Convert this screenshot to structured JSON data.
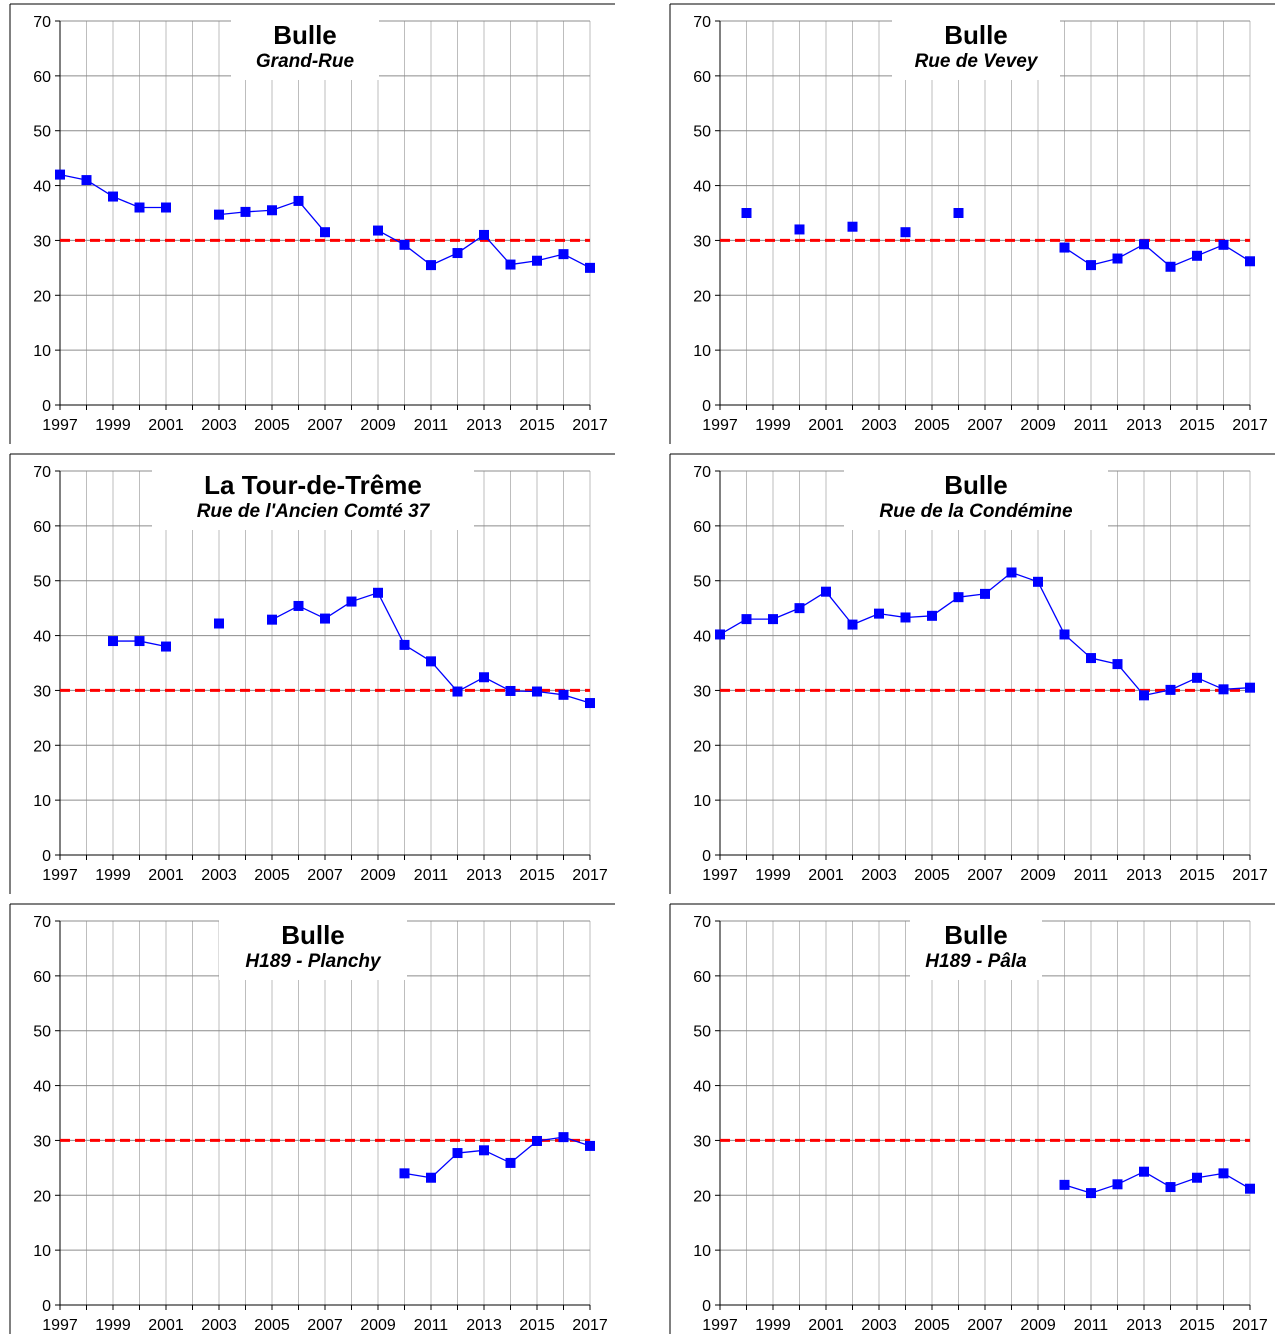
{
  "colors": {
    "series": "#0000ff",
    "threshold": "#ff0000",
    "grid": "#bdbdbd"
  },
  "chart_data": [
    {
      "type": "line",
      "title": "Bulle",
      "subtitle": "Grand-Rue",
      "ylim": [
        0,
        70
      ],
      "yticks": [
        "0",
        "10",
        "20",
        "30",
        "40",
        "50",
        "60",
        "70"
      ],
      "xlim": [
        1997,
        2017
      ],
      "xticks": [
        "1997",
        "1999",
        "2001",
        "2003",
        "2005",
        "2007",
        "2009",
        "2011",
        "2013",
        "2015",
        "2017"
      ],
      "grid": "on",
      "threshold": 30,
      "series": [
        {
          "x": [
            1997,
            1998,
            1999,
            2000,
            2001,
            2002,
            2003,
            2004,
            2005,
            2006,
            2007,
            2008,
            2009,
            2010,
            2011,
            2012,
            2013,
            2014,
            2015,
            2016,
            2017
          ],
          "values": [
            42,
            41,
            38,
            36,
            36,
            null,
            34.7,
            35.2,
            35.5,
            37.2,
            31.5,
            null,
            31.8,
            29.2,
            25.5,
            27.7,
            31,
            25.6,
            26.3,
            27.5,
            25
          ]
        }
      ]
    },
    {
      "type": "line",
      "title": "Bulle",
      "subtitle": "Rue de Vevey",
      "ylim": [
        0,
        70
      ],
      "yticks": [
        "0",
        "10",
        "20",
        "30",
        "40",
        "50",
        "60",
        "70"
      ],
      "xlim": [
        1997,
        2017
      ],
      "xticks": [
        "1997",
        "1999",
        "2001",
        "2003",
        "2005",
        "2007",
        "2009",
        "2011",
        "2013",
        "2015",
        "2017"
      ],
      "grid": "on",
      "threshold": 30,
      "series": [
        {
          "x": [
            1997,
            1998,
            1999,
            2000,
            2001,
            2002,
            2003,
            2004,
            2005,
            2006,
            2007,
            2008,
            2009,
            2010,
            2011,
            2012,
            2013,
            2014,
            2015,
            2016,
            2017
          ],
          "values": [
            null,
            35,
            null,
            32,
            null,
            32.5,
            null,
            31.5,
            null,
            35,
            null,
            null,
            null,
            28.7,
            25.5,
            26.7,
            29.3,
            25.2,
            27.2,
            29.2,
            26.2
          ]
        }
      ]
    },
    {
      "type": "line",
      "title": "La Tour-de-Trême",
      "subtitle": "Rue de l'Ancien Comté 37",
      "ylim": [
        0,
        70
      ],
      "yticks": [
        "0",
        "10",
        "20",
        "30",
        "40",
        "50",
        "60",
        "70"
      ],
      "xlim": [
        1997,
        2017
      ],
      "xticks": [
        "1997",
        "1999",
        "2001",
        "2003",
        "2005",
        "2007",
        "2009",
        "2011",
        "2013",
        "2015",
        "2017"
      ],
      "grid": "on",
      "threshold": 30,
      "series": [
        {
          "x": [
            1997,
            1998,
            1999,
            2000,
            2001,
            2002,
            2003,
            2004,
            2005,
            2006,
            2007,
            2008,
            2009,
            2010,
            2011,
            2012,
            2013,
            2014,
            2015,
            2016,
            2017
          ],
          "values": [
            null,
            null,
            39,
            39,
            38,
            null,
            42.2,
            null,
            42.9,
            45.4,
            43.1,
            46.2,
            47.8,
            38.3,
            35.3,
            29.8,
            32.4,
            29.9,
            29.8,
            29.2,
            27.7
          ]
        }
      ]
    },
    {
      "type": "line",
      "title": "Bulle",
      "subtitle": "Rue de la Condémine",
      "ylim": [
        0,
        70
      ],
      "yticks": [
        "0",
        "10",
        "20",
        "30",
        "40",
        "50",
        "60",
        "70"
      ],
      "xlim": [
        1997,
        2017
      ],
      "xticks": [
        "1997",
        "1999",
        "2001",
        "2003",
        "2005",
        "2007",
        "2009",
        "2011",
        "2013",
        "2015",
        "2017"
      ],
      "grid": "on",
      "threshold": 30,
      "series": [
        {
          "x": [
            1997,
            1998,
            1999,
            2000,
            2001,
            2002,
            2003,
            2004,
            2005,
            2006,
            2007,
            2008,
            2009,
            2010,
            2011,
            2012,
            2013,
            2014,
            2015,
            2016,
            2017
          ],
          "values": [
            40.2,
            43,
            43,
            45,
            48,
            42,
            44,
            43.3,
            43.6,
            47,
            47.6,
            51.5,
            49.8,
            40.2,
            35.9,
            34.8,
            29.1,
            30.1,
            32.3,
            30.2,
            30.5
          ]
        }
      ]
    },
    {
      "type": "line",
      "title": "Bulle",
      "subtitle": "H189 - Planchy",
      "ylim": [
        0,
        70
      ],
      "yticks": [
        "0",
        "10",
        "20",
        "30",
        "40",
        "50",
        "60",
        "70"
      ],
      "xlim": [
        1997,
        2017
      ],
      "xticks": [
        "1997",
        "1999",
        "2001",
        "2003",
        "2005",
        "2007",
        "2009",
        "2011",
        "2013",
        "2015",
        "2017"
      ],
      "grid": "on",
      "threshold": 30,
      "series": [
        {
          "x": [
            2010,
            2011,
            2012,
            2013,
            2014,
            2015,
            2016,
            2017
          ],
          "values": [
            24,
            23.2,
            27.7,
            28.2,
            25.9,
            29.9,
            30.6,
            29
          ]
        }
      ]
    },
    {
      "type": "line",
      "title": "Bulle",
      "subtitle": "H189 - Pâla",
      "ylim": [
        0,
        70
      ],
      "yticks": [
        "0",
        "10",
        "20",
        "30",
        "40",
        "50",
        "60",
        "70"
      ],
      "xlim": [
        1997,
        2017
      ],
      "xticks": [
        "1997",
        "1999",
        "2001",
        "2003",
        "2005",
        "2007",
        "2009",
        "2011",
        "2013",
        "2015",
        "2017"
      ],
      "grid": "on",
      "threshold": 30,
      "series": [
        {
          "x": [
            2010,
            2011,
            2012,
            2013,
            2014,
            2015,
            2016,
            2017
          ],
          "values": [
            21.9,
            20.4,
            22,
            24.3,
            21.5,
            23.2,
            24,
            21.2
          ]
        }
      ]
    }
  ]
}
